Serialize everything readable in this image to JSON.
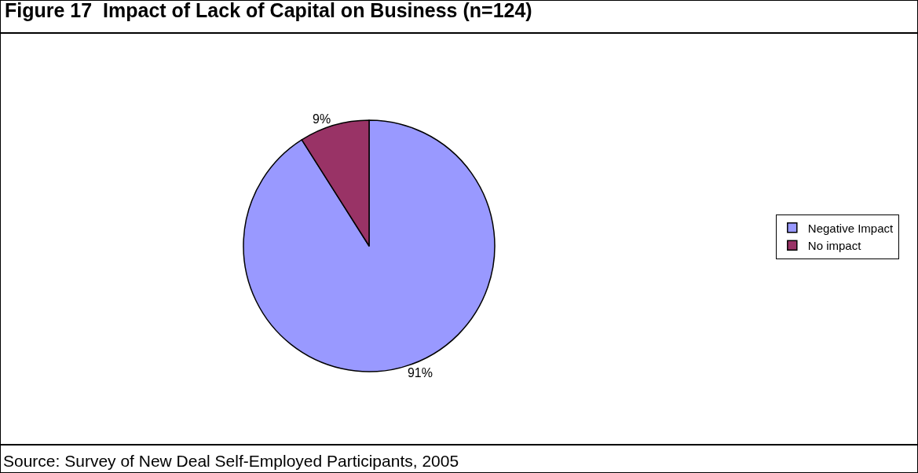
{
  "chart_data": {
    "type": "pie",
    "title": "Figure 17  Impact of Lack of Capital on Business (n=124)",
    "categories": [
      "Negative Impact",
      "No impact"
    ],
    "values": [
      91,
      9
    ],
    "colors": [
      "#9999ff",
      "#993366"
    ],
    "value_labels": [
      "91%",
      "9%"
    ],
    "legend": "right",
    "annotations": [
      "Source: Survey of New Deal Self-Employed Participants, 2005"
    ]
  }
}
